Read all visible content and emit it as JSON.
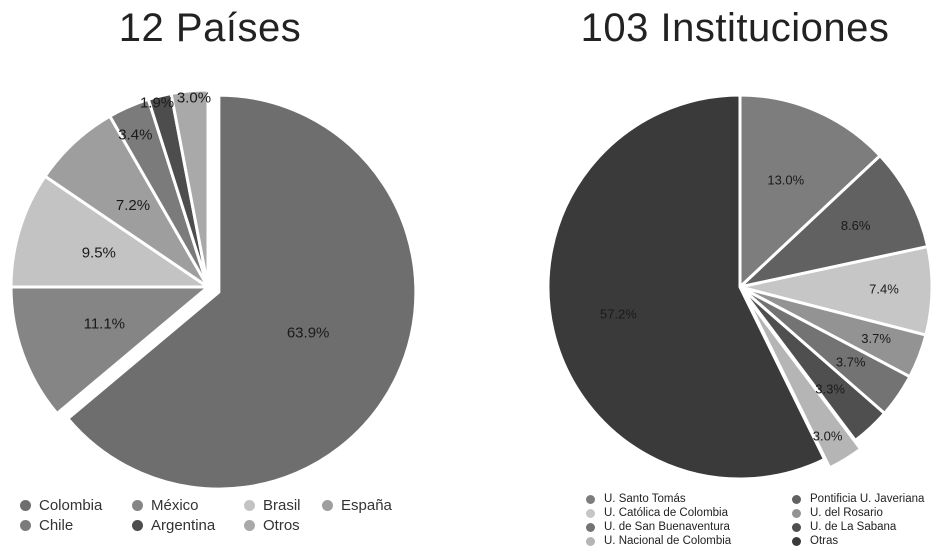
{
  "chart_data": [
    {
      "type": "pie",
      "title": "12 Países",
      "slices": [
        {
          "label": "Colombia",
          "value": 63.9,
          "display": "63.9%",
          "color": "#6e6e6e"
        },
        {
          "label": "México",
          "value": 11.1,
          "display": "11.1%",
          "color": "#858585"
        },
        {
          "label": "Brasil",
          "value": 9.5,
          "display": "9.5%",
          "color": "#c3c3c3"
        },
        {
          "label": "España",
          "value": 7.2,
          "display": "7.2%",
          "color": "#9e9e9e"
        },
        {
          "label": "Chile",
          "value": 3.4,
          "display": "3.4%",
          "color": "#7b7b7b"
        },
        {
          "label": "Argentina",
          "value": 1.9,
          "display": "1.9%",
          "color": "#4d4d4d"
        },
        {
          "label": "Otros",
          "value": 3.0,
          "display": "3.0%",
          "color": "#a9a9a9"
        }
      ],
      "legend": [
        "Colombia",
        "México",
        "Brasil",
        "España",
        "Chile",
        "Argentina",
        "Otros"
      ],
      "legend_placement": "bottom"
    },
    {
      "type": "pie",
      "title": "103 Instituciones",
      "slices": [
        {
          "label": "U. Santo Tomás",
          "value": 13.0,
          "display": "13.0%",
          "color": "#7d7d7d"
        },
        {
          "label": "Pontificia U. Javeriana",
          "value": 8.6,
          "display": "8.6%",
          "color": "#616161"
        },
        {
          "label": "U. Católica de Colombia",
          "value": 7.4,
          "display": "7.4%",
          "color": "#c6c6c6"
        },
        {
          "label": "U. del Rosario",
          "value": 3.7,
          "display": "3.7%",
          "color": "#939393"
        },
        {
          "label": "U. de San Buenaventura",
          "value": 3.7,
          "display": "3.7%",
          "color": "#737373"
        },
        {
          "label": "U. de La Sabana",
          "value": 3.3,
          "display": "3.3%",
          "color": "#4f4f4f"
        },
        {
          "label": "U. Nacional de Colombia",
          "value": 3.0,
          "display": "3.0%",
          "color": "#b5b5b5"
        },
        {
          "label": "Otras",
          "value": 57.2,
          "display": "57.2%",
          "color": "#3a3a3a"
        }
      ],
      "legend": [
        "U. Santo Tomás",
        "Pontificia U. Javeriana",
        "U. Católica de Colombia",
        "U. del Rosario",
        "U. de San Buenaventura",
        "U. de La Sabana",
        "U. Nacional de Colombia",
        "Otras"
      ],
      "legend_placement": "bottom"
    }
  ]
}
